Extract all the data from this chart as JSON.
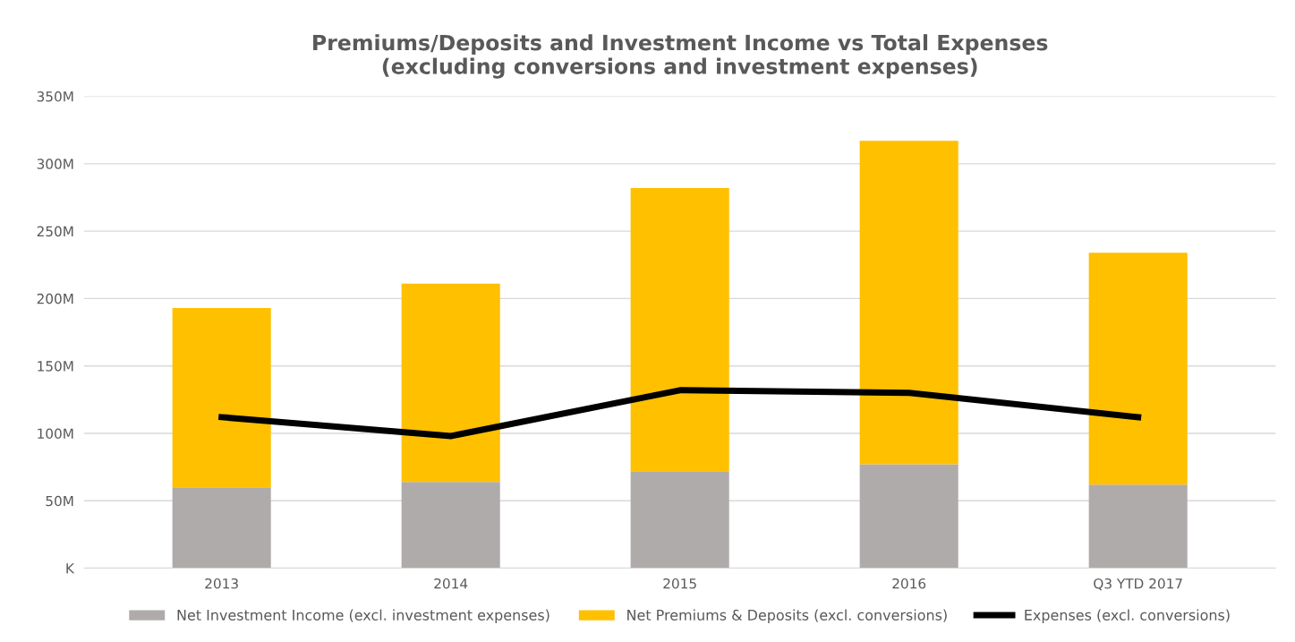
{
  "chart_data": {
    "type": "bar",
    "stacked": true,
    "title": "Premiums/Deposits and Investment Income vs Total Expenses\n(excluding conversions and investment expenses)",
    "categories": [
      "2013",
      "2014",
      "2015",
      "2016",
      "Q3 YTD 2017"
    ],
    "series": [
      {
        "name": "Net Investment Income (excl. investment expenses)",
        "color": "#afabab",
        "values": [
          60,
          64,
          72,
          77,
          62
        ]
      },
      {
        "name": "Net Premiums & Deposits (excl. conversions)",
        "color": "#ffc000",
        "values": [
          133,
          147,
          210,
          240,
          172
        ]
      },
      {
        "name": "Expenses (excl. conversions)",
        "type": "line",
        "color": "#000000",
        "values": [
          112,
          98,
          132,
          130,
          112
        ]
      }
    ],
    "ylim": [
      0,
      350
    ],
    "yticks": [
      {
        "value": 0,
        "label": "K"
      },
      {
        "value": 50,
        "label": "50M"
      },
      {
        "value": 100,
        "label": "100M"
      },
      {
        "value": 150,
        "label": "150M"
      },
      {
        "value": 200,
        "label": "200M"
      },
      {
        "value": 250,
        "label": "250M"
      },
      {
        "value": 300,
        "label": "300M"
      },
      {
        "value": 350,
        "label": "350M"
      }
    ],
    "grid": "y",
    "legend": "bottom",
    "marker": "none",
    "line_style": "solid"
  }
}
